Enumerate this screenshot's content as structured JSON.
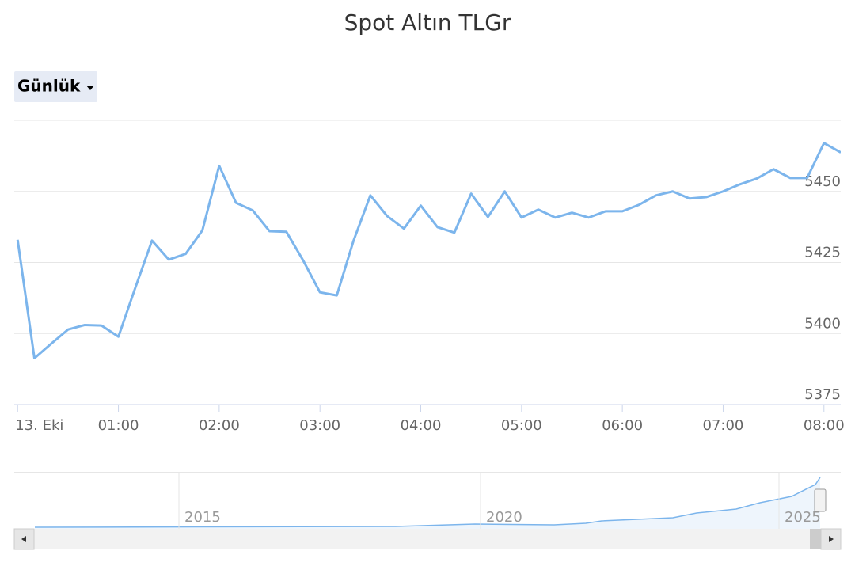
{
  "chart_data": {
    "type": "line",
    "title": "Spot Altın TLGr",
    "range_selector": "Günlük",
    "x": [
      0,
      10,
      20,
      30,
      40,
      50,
      60,
      70,
      80,
      90,
      100,
      110,
      120,
      130,
      140,
      150,
      160,
      170,
      180,
      190,
      200,
      210,
      220,
      230,
      240,
      250,
      260,
      270,
      280,
      290,
      300,
      310,
      320,
      330,
      340,
      350,
      360,
      370,
      380,
      390,
      400,
      410,
      420,
      430,
      440,
      450,
      460,
      470,
      480,
      490
    ],
    "series": [
      {
        "color": "#7cb5ec",
        "values": [
          5433,
          5391.3,
          5396.4,
          5401.4,
          5403,
          5402.8,
          5398.9,
          5416,
          5432.7,
          5426,
          5428,
          5436.3,
          5459,
          5446,
          5443.3,
          5436,
          5435.8,
          5425.7,
          5414.5,
          5413.4,
          5432.7,
          5448.6,
          5441.3,
          5436.9,
          5445,
          5437.4,
          5435.5,
          5449.2,
          5441,
          5450,
          5440.8,
          5443.6,
          5440.8,
          5442.5,
          5440.8,
          5443,
          5443,
          5445.3,
          5448.6,
          5450,
          5447.5,
          5448,
          5450,
          5452.5,
          5454.5,
          5457.8,
          5454.7,
          5454.7,
          5467,
          5463.7
        ]
      }
    ],
    "xlim": [
      -2,
      490
    ],
    "xticks": [
      {
        "value": 0,
        "label": "13. Eki"
      },
      {
        "value": 60,
        "label": "01:00"
      },
      {
        "value": 120,
        "label": "02:00"
      },
      {
        "value": 180,
        "label": "03:00"
      },
      {
        "value": 240,
        "label": "04:00"
      },
      {
        "value": 300,
        "label": "05:00"
      },
      {
        "value": 360,
        "label": "06:00"
      },
      {
        "value": 420,
        "label": "07:00"
      },
      {
        "value": 480,
        "label": "08:00"
      }
    ],
    "ylim": [
      5375,
      5475
    ],
    "yticks": [
      5375,
      5400,
      5425,
      5450
    ],
    "grid": true,
    "navigator_labels": [
      "2015",
      "2020",
      "2025"
    ]
  }
}
